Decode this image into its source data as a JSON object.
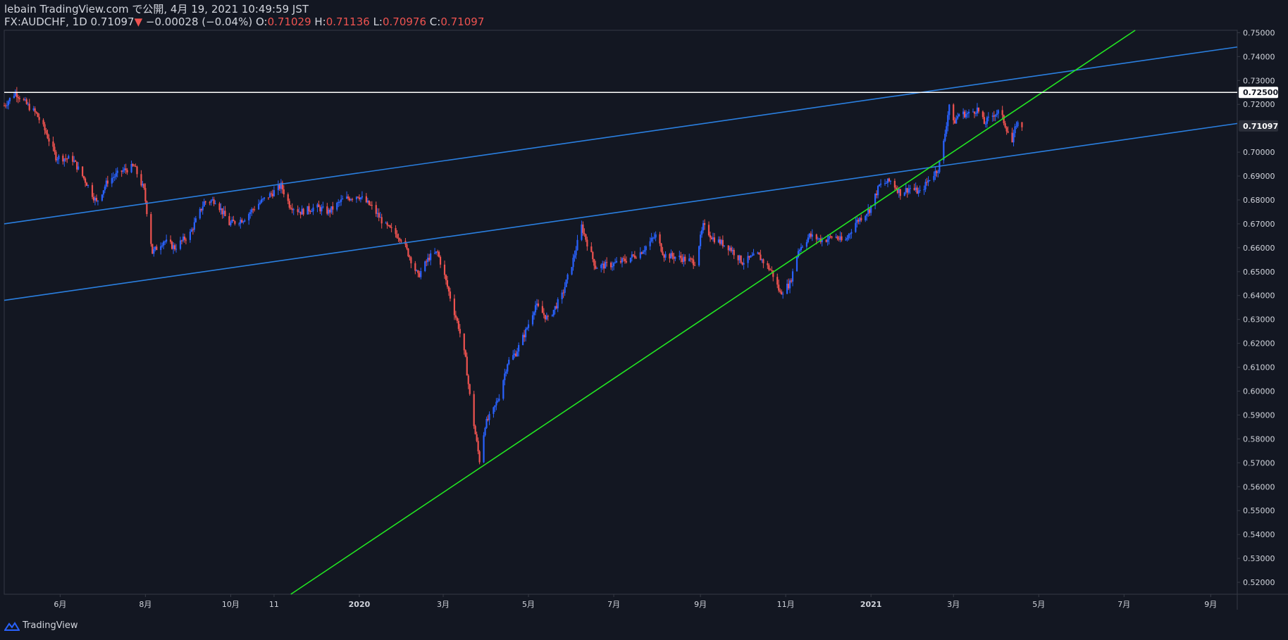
{
  "header": {
    "publisher": "lebain TradingView.com で公開, 4月 19, 2021 10:49:59 JST",
    "symbol": "FX:AUDCHF, 1D",
    "last": "0.71097",
    "change_arrow": "▼",
    "change": "−0.00028 (−0.04%)",
    "o_label": "O:",
    "o_value": "0.71029",
    "h_label": "H:",
    "h_value": "0.71136",
    "l_label": "L:",
    "l_value": "0.70976",
    "c_label": "C:",
    "c_value": "0.71097"
  },
  "footer": {
    "brand": "TradingView",
    "logo_icon": "tradingview-logo-icon"
  },
  "colors": {
    "background": "#131722",
    "up": "#2962ff",
    "down": "#ef5350",
    "channel": "#2a7fe0",
    "trend": "#22e622",
    "level": "#ffffff",
    "text": "#d1d4dc",
    "grid_axis": "#363a45"
  },
  "chart_data": {
    "type": "candlestick",
    "symbol": "FX:AUDCHF",
    "interval": "1D",
    "y_range": [
      0.515,
      0.751
    ],
    "y_ticks": [
      "0.75000",
      "0.74000",
      "0.73000",
      "0.72000",
      "0.70000",
      "0.69000",
      "0.68000",
      "0.67000",
      "0.66000",
      "0.65000",
      "0.64000",
      "0.63000",
      "0.62000",
      "0.61000",
      "0.60000",
      "0.59000",
      "0.58000",
      "0.57000",
      "0.56000",
      "0.55000",
      "0.54000",
      "0.53000",
      "0.52000"
    ],
    "x_range": [
      "2019-04-22",
      "2021-09-20"
    ],
    "x_ticks": [
      {
        "label": "6月",
        "date": "2019-06-01"
      },
      {
        "label": "8月",
        "date": "2019-08-01"
      },
      {
        "label": "10月",
        "date": "2019-10-01"
      },
      {
        "label": "11",
        "date": "2019-11-01"
      },
      {
        "label": "2020",
        "date": "2020-01-01"
      },
      {
        "label": "3月",
        "date": "2020-03-01"
      },
      {
        "label": "5月",
        "date": "2020-05-01"
      },
      {
        "label": "7月",
        "date": "2020-07-01"
      },
      {
        "label": "9月",
        "date": "2020-09-01"
      },
      {
        "label": "11月",
        "date": "2020-11-01"
      },
      {
        "label": "2021",
        "date": "2021-01-01"
      },
      {
        "label": "3月",
        "date": "2021-03-01"
      },
      {
        "label": "5月",
        "date": "2021-05-01"
      },
      {
        "label": "7月",
        "date": "2021-07-01"
      },
      {
        "label": "9月",
        "date": "2021-09-01"
      }
    ],
    "price_path": [
      [
        "2019-04-22",
        0.7195
      ],
      [
        "2019-04-30",
        0.725
      ],
      [
        "2019-05-08",
        0.72
      ],
      [
        "2019-05-15",
        0.716
      ],
      [
        "2019-05-22",
        0.708
      ],
      [
        "2019-05-29",
        0.698
      ],
      [
        "2019-06-10",
        0.697
      ],
      [
        "2019-06-20",
        0.687
      ],
      [
        "2019-06-27",
        0.679
      ],
      [
        "2019-07-05",
        0.688
      ],
      [
        "2019-07-15",
        0.692
      ],
      [
        "2019-07-24",
        0.694
      ],
      [
        "2019-07-31",
        0.684
      ],
      [
        "2019-08-06",
        0.658
      ],
      [
        "2019-08-14",
        0.663
      ],
      [
        "2019-08-22",
        0.66
      ],
      [
        "2019-09-02",
        0.666
      ],
      [
        "2019-09-12",
        0.679
      ],
      [
        "2019-09-20",
        0.68
      ],
      [
        "2019-09-30",
        0.67
      ],
      [
        "2019-10-10",
        0.672
      ],
      [
        "2019-10-20",
        0.678
      ],
      [
        "2019-10-31",
        0.683
      ],
      [
        "2019-11-06",
        0.686
      ],
      [
        "2019-11-12",
        0.678
      ],
      [
        "2019-11-20",
        0.675
      ],
      [
        "2019-12-01",
        0.677
      ],
      [
        "2019-12-10",
        0.675
      ],
      [
        "2019-12-20",
        0.68
      ],
      [
        "2019-12-31",
        0.682
      ],
      [
        "2020-01-10",
        0.677
      ],
      [
        "2020-01-20",
        0.669
      ],
      [
        "2020-01-31",
        0.664
      ],
      [
        "2020-02-07",
        0.655
      ],
      [
        "2020-02-12",
        0.648
      ],
      [
        "2020-02-20",
        0.656
      ],
      [
        "2020-02-26",
        0.658
      ],
      [
        "2020-03-02",
        0.648
      ],
      [
        "2020-03-08",
        0.635
      ],
      [
        "2020-03-12",
        0.627
      ],
      [
        "2020-03-17",
        0.613
      ],
      [
        "2020-03-20",
        0.598
      ],
      [
        "2020-03-24",
        0.582
      ],
      [
        "2020-03-27",
        0.571
      ],
      [
        "2020-03-31",
        0.586
      ],
      [
        "2020-04-06",
        0.592
      ],
      [
        "2020-04-10",
        0.598
      ],
      [
        "2020-04-16",
        0.612
      ],
      [
        "2020-04-22",
        0.616
      ],
      [
        "2020-04-29",
        0.625
      ],
      [
        "2020-05-06",
        0.636
      ],
      [
        "2020-05-15",
        0.63
      ],
      [
        "2020-05-25",
        0.64
      ],
      [
        "2020-06-02",
        0.655
      ],
      [
        "2020-06-08",
        0.669
      ],
      [
        "2020-06-12",
        0.662
      ],
      [
        "2020-06-18",
        0.652
      ],
      [
        "2020-06-30",
        0.653
      ],
      [
        "2020-07-10",
        0.655
      ],
      [
        "2020-07-20",
        0.658
      ],
      [
        "2020-07-31",
        0.665
      ],
      [
        "2020-08-06",
        0.657
      ],
      [
        "2020-08-16",
        0.656
      ],
      [
        "2020-08-28",
        0.654
      ],
      [
        "2020-09-03",
        0.669
      ],
      [
        "2020-09-10",
        0.664
      ],
      [
        "2020-09-22",
        0.66
      ],
      [
        "2020-10-01",
        0.654
      ],
      [
        "2020-10-12",
        0.657
      ],
      [
        "2020-10-22",
        0.65
      ],
      [
        "2020-10-28",
        0.641
      ],
      [
        "2020-11-04",
        0.645
      ],
      [
        "2020-11-10",
        0.659
      ],
      [
        "2020-11-18",
        0.665
      ],
      [
        "2020-11-28",
        0.663
      ],
      [
        "2020-12-06",
        0.665
      ],
      [
        "2020-12-13",
        0.662
      ],
      [
        "2020-12-20",
        0.67
      ],
      [
        "2020-12-31",
        0.676
      ],
      [
        "2021-01-07",
        0.686
      ],
      [
        "2021-01-15",
        0.688
      ],
      [
        "2021-01-22",
        0.683
      ],
      [
        "2021-01-29",
        0.685
      ],
      [
        "2021-02-05",
        0.683
      ],
      [
        "2021-02-12",
        0.689
      ],
      [
        "2021-02-18",
        0.693
      ],
      [
        "2021-02-22",
        0.704
      ],
      [
        "2021-02-26",
        0.72
      ],
      [
        "2021-03-01",
        0.712
      ],
      [
        "2021-03-05",
        0.716
      ],
      [
        "2021-03-12",
        0.716
      ],
      [
        "2021-03-18",
        0.718
      ],
      [
        "2021-03-23",
        0.712
      ],
      [
        "2021-03-30",
        0.716
      ],
      [
        "2021-04-03",
        0.717
      ],
      [
        "2021-04-08",
        0.71
      ],
      [
        "2021-04-12",
        0.704
      ],
      [
        "2021-04-15",
        0.712
      ],
      [
        "2021-04-19",
        0.71097
      ]
    ],
    "drawings": [
      {
        "kind": "channel-upper",
        "color": "#2a7fe0",
        "from": [
          "2019-04-22",
          0.67
        ],
        "to": [
          "2021-09-20",
          0.744
        ]
      },
      {
        "kind": "channel-lower",
        "color": "#2a7fe0",
        "from": [
          "2019-04-22",
          0.638
        ],
        "to": [
          "2021-09-20",
          0.712
        ]
      },
      {
        "kind": "trend-support",
        "color": "#22e622",
        "from": [
          "2019-11-13",
          0.515
        ],
        "to": [
          "2021-07-09",
          0.751
        ]
      },
      {
        "kind": "horizontal",
        "color": "#ffffff",
        "price": 0.725
      }
    ],
    "price_labels": [
      {
        "value": "0.72500",
        "price": 0.725,
        "style": "level"
      },
      {
        "value": "0.71097",
        "price": 0.71097,
        "style": "last"
      }
    ]
  }
}
